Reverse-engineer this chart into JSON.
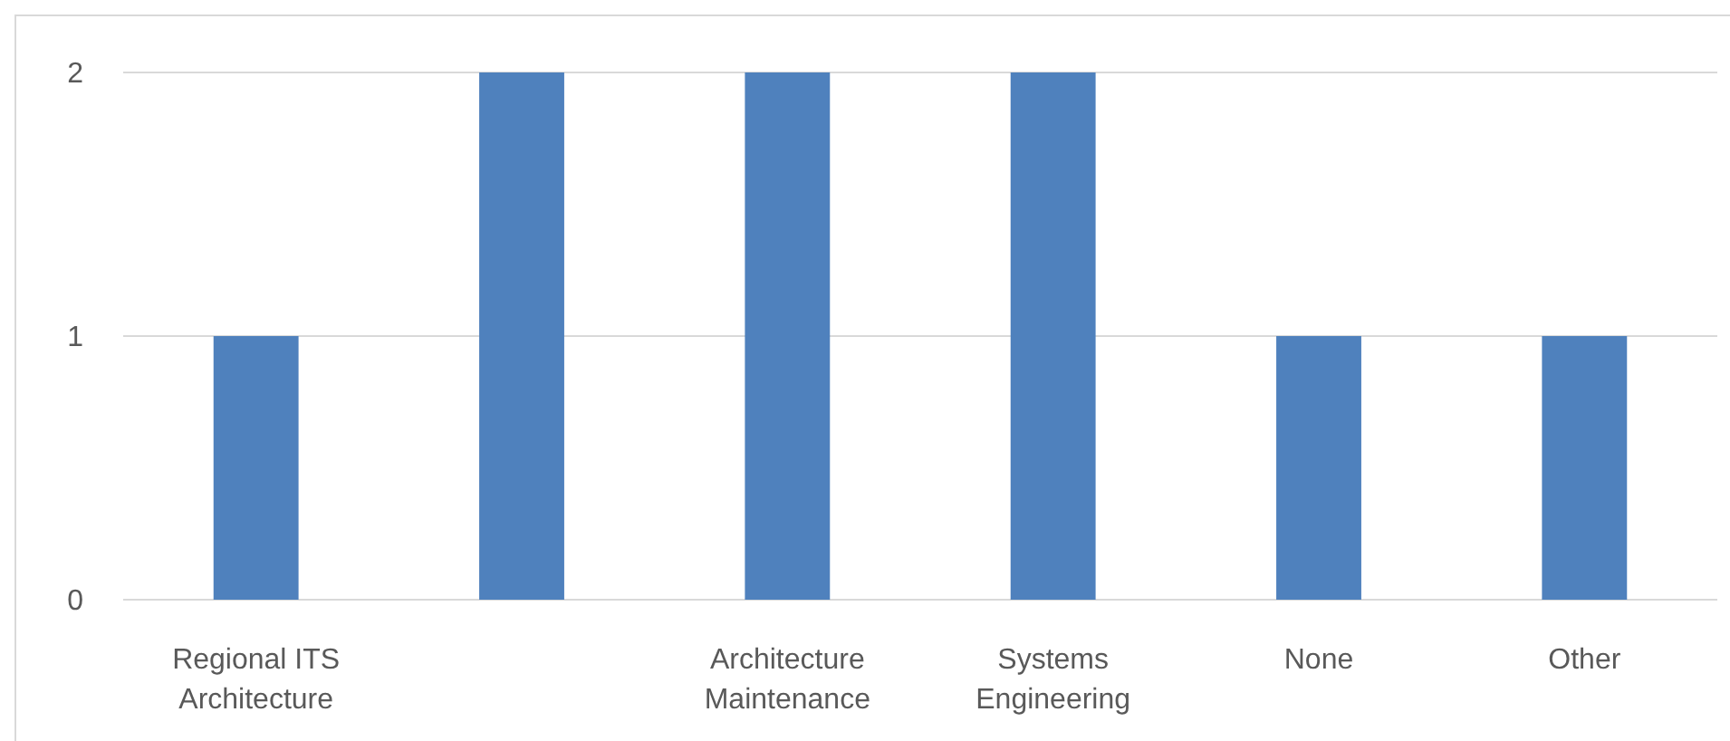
{
  "chart_data": {
    "type": "bar",
    "categories": [
      "Regional ITS Architecture",
      null,
      "Architecture Maintenance",
      "Systems Engineering",
      "None",
      "Other"
    ],
    "values": [
      1,
      2,
      2,
      2,
      1,
      1
    ],
    "color": "#4f81bd",
    "ylim": [
      0,
      2
    ],
    "yticks": [
      0,
      1,
      2
    ],
    "grid": "y"
  }
}
